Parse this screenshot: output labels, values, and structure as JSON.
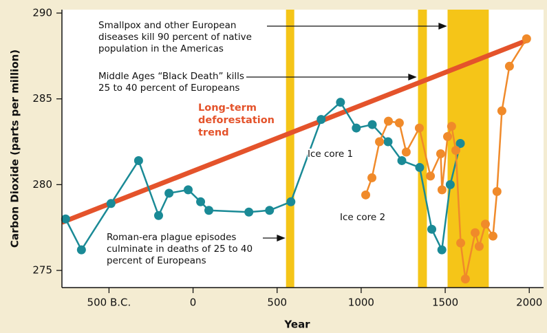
{
  "chart_data": {
    "type": "line",
    "x_label": "Year",
    "y_label": "Carbon Dioxide (parts per million)",
    "xlim": [
      -780,
      2085
    ],
    "ylim": [
      274,
      290.2
    ],
    "xticks": [
      {
        "value": -500,
        "label": "500 B.C."
      },
      0,
      500,
      1000,
      1500,
      2000
    ],
    "yticks": [
      275,
      280,
      285,
      290
    ],
    "shaded_periods": [
      [
        553,
        602
      ],
      [
        1338,
        1391
      ],
      [
        1514,
        1759
      ]
    ],
    "band_color": "#f5c518",
    "annotations": [
      "Smallpox and other European diseases kill 90 percent of native population in the Americas",
      "Middle Ages “Black Death” kills 25 to 40 percent of Europeans",
      "Roman-era plague episodes culminate in deaths of 25 to 40 percent of Europeans"
    ],
    "series": [
      {
        "name": "Long-term deforestation trend",
        "color": "#e4532b",
        "markers": false,
        "x": [
          -780,
          1985
        ],
        "values": [
          277.8,
          288.4
        ]
      },
      {
        "name": "Ice core 1",
        "color": "#1a8a96",
        "markers": true,
        "x": [
          -758,
          -664,
          -488,
          -324,
          -205,
          -143,
          -29,
          45,
          94,
          332,
          455,
          582,
          762,
          877,
          971,
          1066,
          1160,
          1242,
          1348,
          1420,
          1480,
          1530,
          1590
        ],
        "values": [
          278.0,
          276.2,
          278.9,
          281.4,
          278.2,
          279.5,
          279.7,
          279.0,
          278.5,
          278.4,
          278.5,
          279.0,
          283.8,
          284.8,
          283.3,
          283.5,
          282.5,
          281.4,
          281.0,
          277.4,
          276.2,
          280.0,
          282.4
        ]
      },
      {
        "name": "Ice core 2",
        "color": "#f08a2a",
        "markers": true,
        "x": [
          1027,
          1064,
          1109,
          1162,
          1227,
          1268,
          1346,
          1412,
          1473,
          1481,
          1514,
          1538,
          1563,
          1592,
          1620,
          1678,
          1702,
          1739,
          1784,
          1808,
          1837,
          1882,
          1984
        ],
        "values": [
          279.4,
          280.4,
          282.5,
          283.7,
          283.6,
          281.9,
          283.3,
          280.5,
          281.8,
          279.7,
          282.8,
          283.4,
          282.0,
          276.6,
          274.5,
          277.2,
          276.4,
          277.7,
          277.0,
          279.6,
          284.3,
          286.9,
          288.5
        ]
      }
    ]
  }
}
